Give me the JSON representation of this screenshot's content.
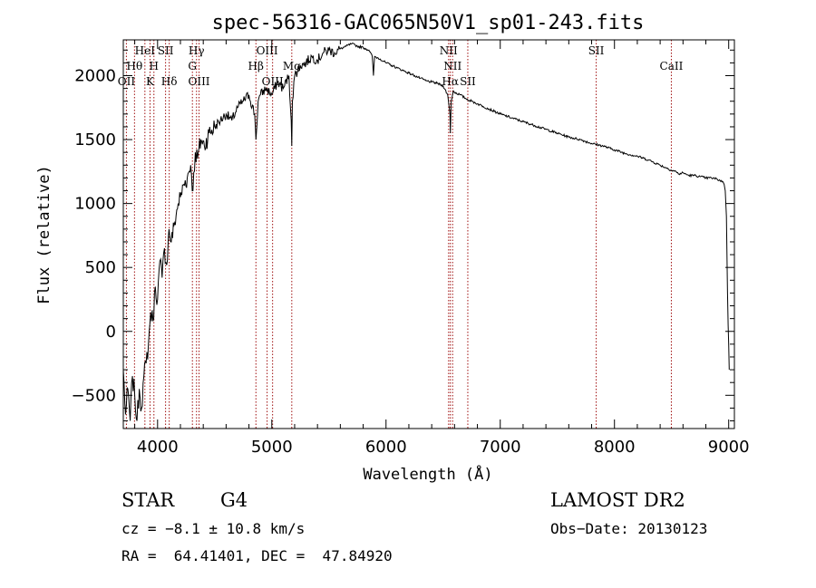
{
  "chart_data": {
    "type": "line",
    "title": "spec-56316-GAC065N50V1_sp01-243.fits",
    "xlabel": "Wavelength (Å)",
    "ylabel": "Flux (relative)",
    "xlim": [
      3700,
      9050
    ],
    "ylim": [
      -760,
      2280
    ],
    "xticks": [
      {
        "value": 4000,
        "label": "4000"
      },
      {
        "value": 5000,
        "label": "5000"
      },
      {
        "value": 6000,
        "label": "6000"
      },
      {
        "value": 7000,
        "label": "7000"
      },
      {
        "value": 8000,
        "label": "8000"
      },
      {
        "value": 9000,
        "label": "9000"
      }
    ],
    "yticks": [
      {
        "value": -500,
        "label": "−500"
      },
      {
        "value": 0,
        "label": "0"
      },
      {
        "value": 500,
        "label": "500"
      },
      {
        "value": 1000,
        "label": "1000"
      },
      {
        "value": 1500,
        "label": "1500"
      },
      {
        "value": 2000,
        "label": "2000"
      }
    ],
    "grid": false,
    "series": [
      {
        "x": [
          3700,
          3720,
          3740,
          3760,
          3780,
          3800,
          3820,
          3840,
          3860,
          3880,
          3900,
          3920,
          3940,
          3960,
          3980,
          4000,
          4020,
          4040,
          4060,
          4080,
          4100,
          4120,
          4150,
          4180,
          4200,
          4230,
          4260,
          4290,
          4310,
          4330,
          4350,
          4380,
          4410,
          4450,
          4500,
          4550,
          4600,
          4650,
          4700,
          4750,
          4800,
          4850,
          4861,
          4880,
          4900,
          4950,
          5000,
          5050,
          5100,
          5150,
          5170,
          5175,
          5180,
          5200,
          5250,
          5300,
          5350,
          5400,
          5450,
          5500,
          5550,
          5600,
          5650,
          5700,
          5750,
          5800,
          5850,
          5880,
          5890,
          5900,
          5950,
          6000,
          6050,
          6100,
          6150,
          6200,
          6250,
          6300,
          6350,
          6400,
          6450,
          6500,
          6540,
          6560,
          6563,
          6570,
          6590,
          6600,
          6650,
          6700,
          6750,
          6800,
          6850,
          6900,
          6950,
          7000,
          7100,
          7200,
          7300,
          7400,
          7500,
          7600,
          7700,
          7800,
          7900,
          8000,
          8100,
          8200,
          8300,
          8400,
          8450,
          8500,
          8540,
          8560,
          8600,
          8650,
          8700,
          8750,
          8800,
          8850,
          8900,
          8950,
          8960,
          8970,
          8980,
          8985,
          8990,
          8995,
          9000,
          9005
        ],
        "y": [
          -300,
          -650,
          -450,
          -700,
          -350,
          -500,
          -700,
          -450,
          -600,
          -350,
          -250,
          -100,
          150,
          80,
          350,
          250,
          550,
          420,
          650,
          520,
          800,
          700,
          850,
          1000,
          1050,
          1150,
          1200,
          1300,
          1100,
          1400,
          1350,
          1500,
          1450,
          1550,
          1600,
          1650,
          1700,
          1650,
          1750,
          1800,
          1850,
          1700,
          1500,
          1800,
          1850,
          1900,
          1850,
          1950,
          1900,
          2000,
          1650,
          1450,
          1800,
          2000,
          2080,
          2100,
          2150,
          2120,
          2180,
          2200,
          2180,
          2210,
          2230,
          2250,
          2230,
          2220,
          2200,
          2150,
          2000,
          2150,
          2130,
          2100,
          2080,
          2060,
          2040,
          2020,
          2000,
          1980,
          1960,
          1950,
          1940,
          1920,
          1850,
          1700,
          1550,
          1800,
          1880,
          1870,
          1850,
          1820,
          1800,
          1780,
          1760,
          1740,
          1720,
          1700,
          1670,
          1640,
          1610,
          1580,
          1550,
          1520,
          1500,
          1470,
          1450,
          1420,
          1390,
          1370,
          1340,
          1300,
          1280,
          1260,
          1250,
          1230,
          1240,
          1220,
          1220,
          1210,
          1200,
          1200,
          1190,
          1170,
          1150,
          1100,
          900,
          600,
          300,
          50,
          -100,
          -300
        ]
      }
    ],
    "lines": [
      {
        "label": "OII",
        "wave": 3727,
        "row": 2
      },
      {
        "label": "Hθ",
        "wave": 3798,
        "row": 1
      },
      {
        "label": "HeI",
        "wave": 3889,
        "row": 0
      },
      {
        "label": "K",
        "wave": 3934,
        "row": 2
      },
      {
        "label": "H",
        "wave": 3968,
        "row": 1
      },
      {
        "label": "SII",
        "wave": 4070,
        "row": 0
      },
      {
        "label": "Hδ",
        "wave": 4102,
        "row": 2
      },
      {
        "label": "Hγ",
        "wave": 4341,
        "row": 0
      },
      {
        "label": "G",
        "wave": 4305,
        "row": 1
      },
      {
        "label": "OIII",
        "wave": 4363,
        "row": 2
      },
      {
        "label": "Hβ",
        "wave": 4861,
        "row": 1
      },
      {
        "label": "OIII",
        "wave": 4959,
        "row": 0
      },
      {
        "label": "OIII",
        "wave": 5007,
        "row": 2
      },
      {
        "label": "Mg",
        "wave": 5175,
        "row": 1
      },
      {
        "label": "NII",
        "wave": 6548,
        "row": 0
      },
      {
        "label": "NII",
        "wave": 6583,
        "row": 1
      },
      {
        "label": "Hα",
        "wave": 6563,
        "row": 2
      },
      {
        "label": "SII",
        "wave": 6716,
        "row": 2
      },
      {
        "label": "SII",
        "wave": 7840,
        "row": 0
      },
      {
        "label": "CaII",
        "wave": 8498,
        "row": 1
      }
    ]
  },
  "info": {
    "class": "STAR",
    "subclass": "G4",
    "survey": "LAMOST DR2",
    "cz": "cz = −8.1 ± 10.8 km/s",
    "obs_date": "Obs−Date: 20130123",
    "coords": "RA =  64.41401, DEC =  47.84920"
  }
}
